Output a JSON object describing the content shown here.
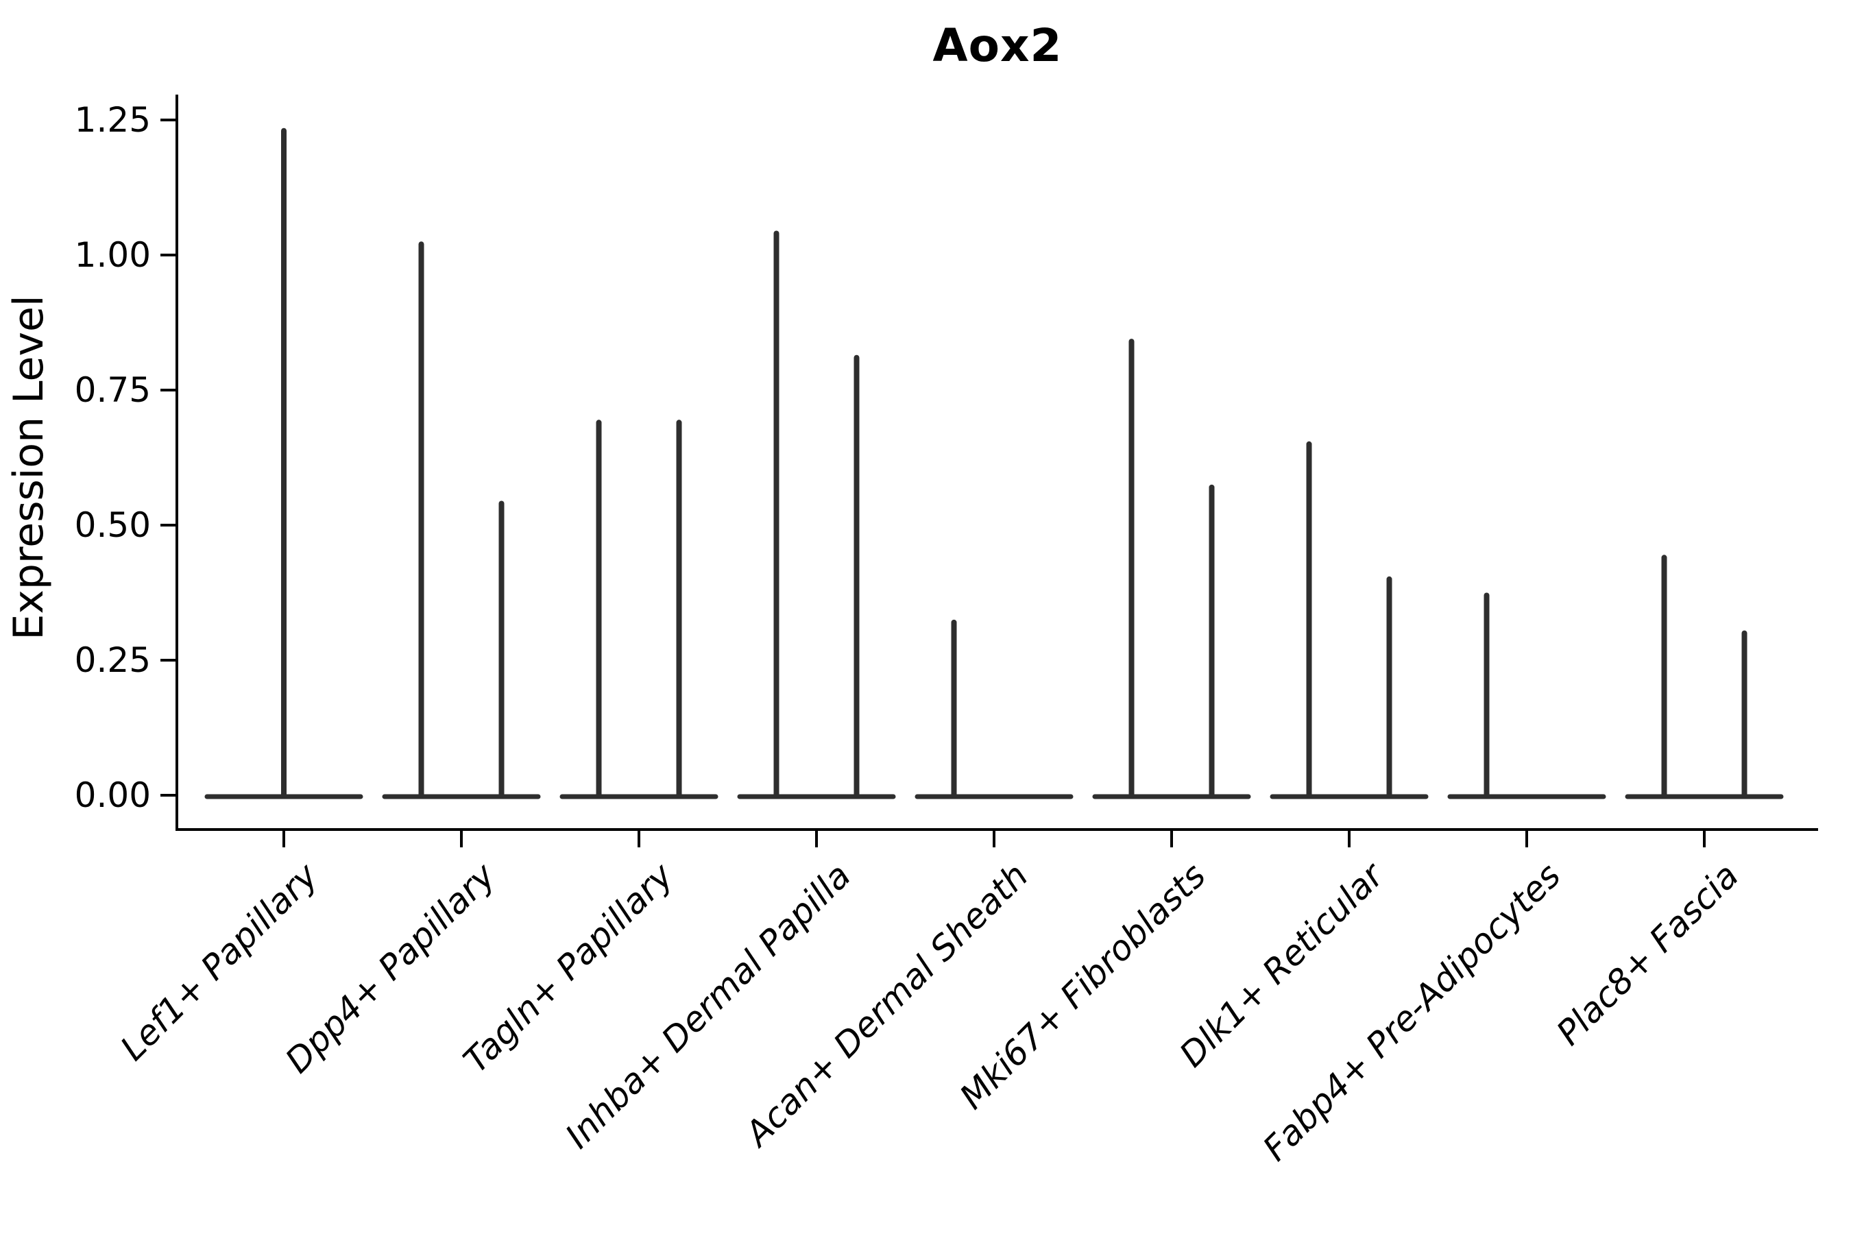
{
  "chart_data": {
    "type": "violin",
    "title": "Aox2",
    "xlabel": "",
    "ylabel": "Expression Level",
    "ylim": [
      -0.07,
      1.3
    ],
    "grid": false,
    "legend": "none",
    "violin_color": "#2e2e2e",
    "axis_color": "#000000",
    "background_color": "#ffffff",
    "yticks": [
      {
        "value": 0.0,
        "label": "0.00"
      },
      {
        "value": 0.25,
        "label": "0.25"
      },
      {
        "value": 0.5,
        "label": "0.50"
      },
      {
        "value": 0.75,
        "label": "0.75"
      },
      {
        "value": 1.0,
        "label": "1.00"
      },
      {
        "value": 1.25,
        "label": "1.25"
      }
    ],
    "categories": [
      "Lef1+ Papillary",
      "Dpp4+ Papillary",
      "Tagln+ Papillary",
      "Inhba+ Dermal Papilla",
      "Acan+ Dermal Sheath",
      "Mki67+ Fibroblasts",
      "Dlk1+ Reticular",
      "Fabp4+ Pre-Adipocytes",
      "Plac8+ Fascia"
    ],
    "violins": [
      {
        "category": "Lef1+ Papillary",
        "spikes": [
          {
            "slot": "center",
            "max": 1.23
          }
        ]
      },
      {
        "category": "Dpp4+ Papillary",
        "spikes": [
          {
            "slot": "left",
            "max": 1.02
          },
          {
            "slot": "right",
            "max": 0.54
          }
        ]
      },
      {
        "category": "Tagln+ Papillary",
        "spikes": [
          {
            "slot": "left",
            "max": 0.69
          },
          {
            "slot": "right",
            "max": 0.69
          }
        ]
      },
      {
        "category": "Inhba+ Dermal Papilla",
        "spikes": [
          {
            "slot": "left",
            "max": 1.04
          },
          {
            "slot": "right",
            "max": 0.81
          }
        ]
      },
      {
        "category": "Acan+ Dermal Sheath",
        "spikes": [
          {
            "slot": "left",
            "max": 0.32
          }
        ]
      },
      {
        "category": "Mki67+ Fibroblasts",
        "spikes": [
          {
            "slot": "left",
            "max": 0.84
          },
          {
            "slot": "right",
            "max": 0.57
          }
        ]
      },
      {
        "category": "Dlk1+ Reticular",
        "spikes": [
          {
            "slot": "left",
            "max": 0.65
          },
          {
            "slot": "right",
            "max": 0.4
          }
        ]
      },
      {
        "category": "Fabp4+ Pre-Adipocytes",
        "spikes": [
          {
            "slot": "left",
            "max": 0.37
          }
        ]
      },
      {
        "category": "Plac8+ Fascia",
        "spikes": [
          {
            "slot": "left",
            "max": 0.44
          },
          {
            "slot": "right",
            "max": 0.3
          }
        ]
      }
    ]
  }
}
